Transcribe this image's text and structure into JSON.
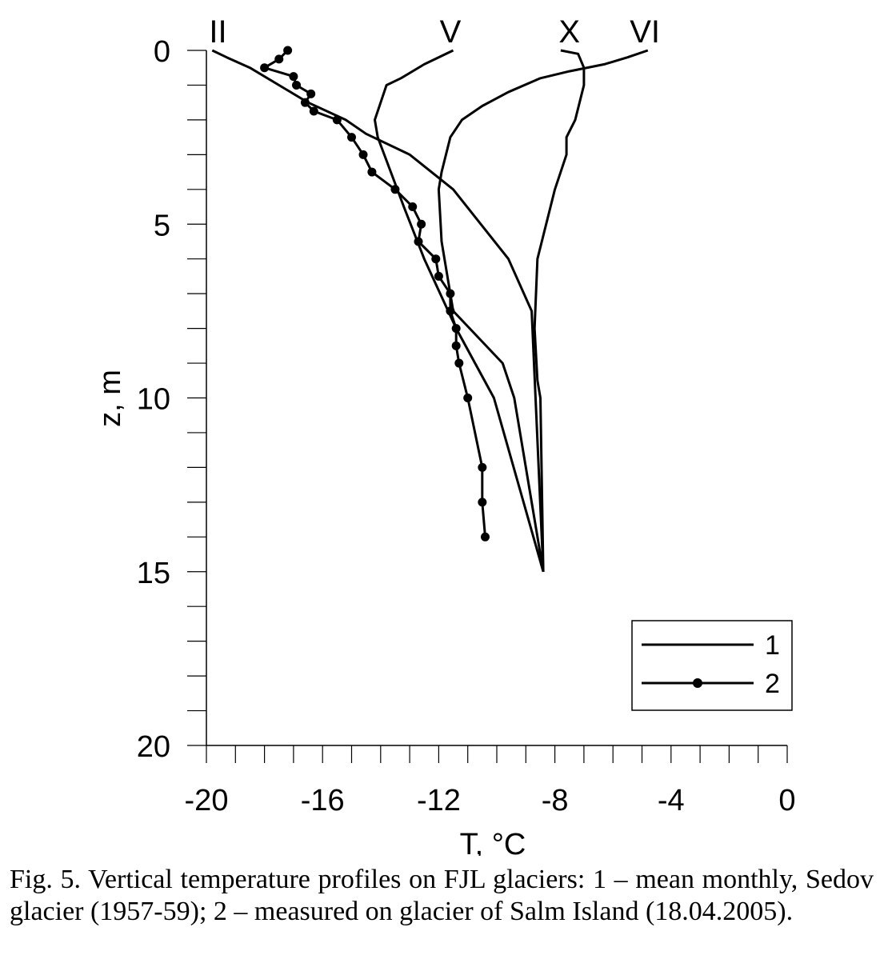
{
  "chart_data": {
    "type": "line",
    "xlabel": "T, °C",
    "ylabel": "z, m",
    "xlim": [
      -20,
      0
    ],
    "ylim": [
      0,
      20
    ],
    "y_inverted": true,
    "x_ticks": [
      "-20",
      "-16",
      "-12",
      "-8",
      "-4",
      "0"
    ],
    "y_ticks": [
      "0",
      "5",
      "10",
      "15",
      "20"
    ],
    "legend": {
      "position": "bottom-right",
      "entries": [
        {
          "label": "1",
          "style": "line"
        },
        {
          "label": "2",
          "style": "line-with-markers"
        }
      ]
    },
    "series": [
      {
        "name": "II",
        "style": 1,
        "points": [
          [
            -19.8,
            0
          ],
          [
            -19.3,
            0.2
          ],
          [
            -18.5,
            0.5
          ],
          [
            -17.5,
            1
          ],
          [
            -16.5,
            1.5
          ],
          [
            -15.2,
            2
          ],
          [
            -14.5,
            2.4
          ],
          [
            -13,
            3
          ],
          [
            -11.5,
            4
          ],
          [
            -9.6,
            6
          ],
          [
            -8.8,
            7.5
          ],
          [
            -8.4,
            15
          ]
        ]
      },
      {
        "name": "V",
        "style": 1,
        "points": [
          [
            -11.5,
            0
          ],
          [
            -12.5,
            0.4
          ],
          [
            -13.3,
            0.8
          ],
          [
            -13.8,
            1
          ],
          [
            -14,
            1.5
          ],
          [
            -14.2,
            2
          ],
          [
            -14.1,
            2.5
          ],
          [
            -13.2,
            4.5
          ],
          [
            -12.5,
            6
          ],
          [
            -11.4,
            8
          ],
          [
            -10.1,
            10
          ],
          [
            -8.4,
            15
          ]
        ]
      },
      {
        "name": "X",
        "style": 1,
        "points": [
          [
            -7.8,
            0
          ],
          [
            -7.2,
            0.1
          ],
          [
            -7.0,
            0.5
          ],
          [
            -7.0,
            1
          ],
          [
            -7.3,
            2
          ],
          [
            -7.6,
            2.5
          ],
          [
            -7.6,
            3
          ],
          [
            -8.0,
            4
          ],
          [
            -8.6,
            6
          ],
          [
            -8.7,
            8
          ],
          [
            -8.6,
            9.5
          ],
          [
            -8.5,
            10
          ],
          [
            -8.4,
            15
          ]
        ]
      },
      {
        "name": "VI",
        "style": 1,
        "points": [
          [
            -4.8,
            0
          ],
          [
            -5.5,
            0.2
          ],
          [
            -6.3,
            0.4
          ],
          [
            -7.5,
            0.6
          ],
          [
            -8.5,
            0.8
          ],
          [
            -9.6,
            1.2
          ],
          [
            -10.5,
            1.6
          ],
          [
            -11.2,
            2
          ],
          [
            -11.6,
            2.5
          ],
          [
            -11.9,
            3.5
          ],
          [
            -12.0,
            4
          ],
          [
            -11.9,
            5.5
          ],
          [
            -11.5,
            7.5
          ],
          [
            -9.8,
            9
          ],
          [
            -9.4,
            10
          ],
          [
            -8.4,
            15
          ]
        ]
      },
      {
        "name": "",
        "style": 2,
        "points": [
          [
            -17.2,
            0
          ],
          [
            -17.5,
            0.25
          ],
          [
            -18.0,
            0.5
          ],
          [
            -17.0,
            0.75
          ],
          [
            -16.9,
            1
          ],
          [
            -16.4,
            1.25
          ],
          [
            -16.6,
            1.5
          ],
          [
            -16.3,
            1.75
          ],
          [
            -15.5,
            2
          ],
          [
            -15.0,
            2.5
          ],
          [
            -14.6,
            3
          ],
          [
            -14.3,
            3.5
          ],
          [
            -13.5,
            4
          ],
          [
            -12.9,
            4.5
          ],
          [
            -12.6,
            5
          ],
          [
            -12.7,
            5.5
          ],
          [
            -12.1,
            6
          ],
          [
            -12.0,
            6.5
          ],
          [
            -11.6,
            7
          ],
          [
            -11.6,
            7.5
          ],
          [
            -11.4,
            8
          ],
          [
            -11.4,
            8.5
          ],
          [
            -11.3,
            9
          ],
          [
            -11.0,
            10
          ],
          [
            -10.5,
            12
          ],
          [
            -10.5,
            13
          ],
          [
            -10.4,
            14
          ]
        ]
      }
    ]
  },
  "curve_labels": [
    {
      "name": "II",
      "x": -19.6
    },
    {
      "name": "V",
      "x": -11.6
    },
    {
      "name": "X",
      "x": -7.5
    },
    {
      "name": "VI",
      "x": -4.9
    }
  ],
  "caption": "Fig. 5. Vertical temperature profiles on FJL glaciers: 1 – mean monthly, Sedov glacier (1957-59); 2 – measured on glacier of Salm Island (18.04.2005)."
}
